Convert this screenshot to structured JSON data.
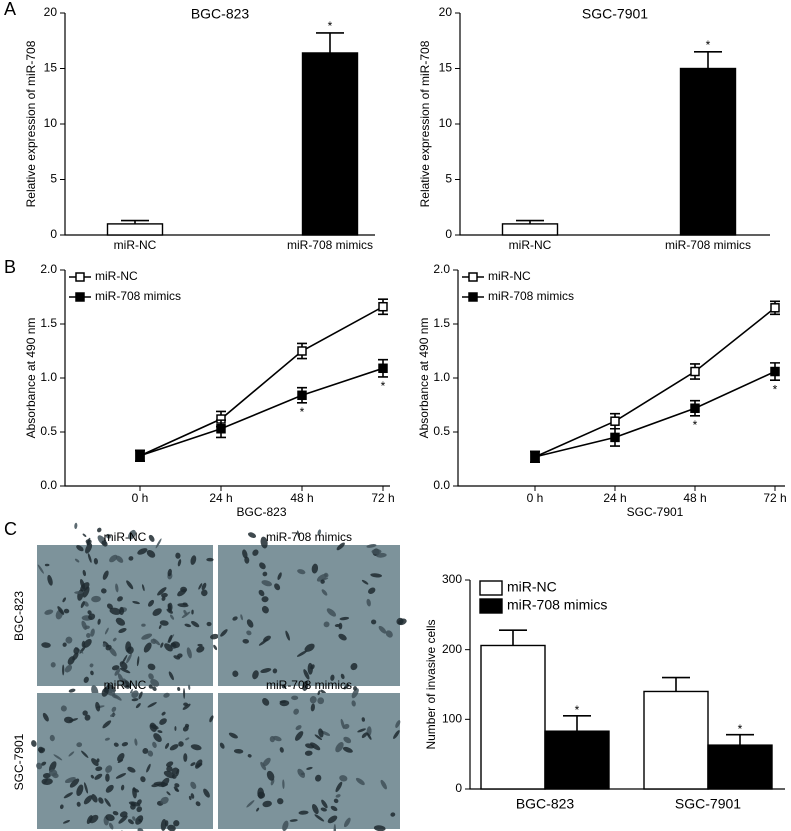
{
  "figure": {
    "panel_labels": [
      "A",
      "B",
      "C"
    ],
    "micrographs": {
      "columns": [
        "miR-NC",
        "miR-708 mimics"
      ],
      "rows": [
        "BGC-823",
        "SGC-7901"
      ]
    }
  },
  "chart_data": [
    {
      "type": "bar",
      "title": "BGC-823",
      "y_label": "Relative expression of miR-708",
      "categories": [
        "miR-NC",
        "miR-708 mimics"
      ],
      "values": [
        1.0,
        16.4
      ],
      "errors": [
        0.3,
        1.8
      ],
      "colors": [
        "#ffffff",
        "#000000"
      ],
      "significance_marks": [
        null,
        "*"
      ],
      "ylim": [
        0,
        20
      ],
      "yticks": [
        0,
        5,
        10,
        15,
        20
      ]
    },
    {
      "type": "bar",
      "title": "SGC-7901",
      "y_label": "Relative expression of miR-708",
      "categories": [
        "miR-NC",
        "miR-708 mimics"
      ],
      "values": [
        1.0,
        15.0
      ],
      "errors": [
        0.3,
        1.5
      ],
      "colors": [
        "#ffffff",
        "#000000"
      ],
      "significance_marks": [
        null,
        "*"
      ],
      "ylim": [
        0,
        20
      ],
      "yticks": [
        0,
        5,
        10,
        15,
        20
      ]
    },
    {
      "type": "line",
      "x_label": "BGC-823",
      "y_label": "Absorbance at 490 nm",
      "categories": [
        "0 h",
        "24 h",
        "48 h",
        "72 h"
      ],
      "legend": "top-left",
      "series": [
        {
          "name": "miR-NC",
          "color": "#000000",
          "marker_fill": "#ffffff",
          "values": [
            0.28,
            0.62,
            1.25,
            1.66
          ],
          "errors": [
            0.05,
            0.07,
            0.07,
            0.07
          ],
          "significance_marks": [
            null,
            null,
            null,
            null
          ]
        },
        {
          "name": "miR-708 mimics",
          "color": "#000000",
          "marker_fill": "#000000",
          "values": [
            0.28,
            0.53,
            0.84,
            1.09
          ],
          "errors": [
            0.05,
            0.08,
            0.07,
            0.08
          ],
          "significance_marks": [
            null,
            null,
            "*",
            "*"
          ]
        }
      ],
      "ylim": [
        0,
        2
      ],
      "yticks": [
        {
          "value": 0,
          "label": "0.0"
        },
        {
          "value": 0.5,
          "label": "0.5"
        },
        {
          "value": 1,
          "label": "1.0"
        },
        {
          "value": 1.5,
          "label": "1.5"
        },
        {
          "value": 2,
          "label": "2.0"
        }
      ]
    },
    {
      "type": "line",
      "x_label": "SGC-7901",
      "y_label": "Absorbance at 490 nm",
      "categories": [
        "0 h",
        "24 h",
        "48 h",
        "72 h"
      ],
      "legend": "top-left",
      "series": [
        {
          "name": "miR-NC",
          "color": "#000000",
          "marker_fill": "#ffffff",
          "values": [
            0.27,
            0.6,
            1.06,
            1.65
          ],
          "errors": [
            0.05,
            0.07,
            0.07,
            0.06
          ],
          "significance_marks": [
            null,
            null,
            null,
            null
          ]
        },
        {
          "name": "miR-708 mimics",
          "color": "#000000",
          "marker_fill": "#000000",
          "values": [
            0.27,
            0.45,
            0.72,
            1.06
          ],
          "errors": [
            0.05,
            0.08,
            0.07,
            0.08
          ],
          "significance_marks": [
            null,
            null,
            "*",
            "*"
          ]
        }
      ],
      "ylim": [
        0,
        2
      ],
      "yticks": [
        {
          "value": 0,
          "label": "0.0"
        },
        {
          "value": 0.5,
          "label": "0.5"
        },
        {
          "value": 1,
          "label": "1.0"
        },
        {
          "value": 1.5,
          "label": "1.5"
        },
        {
          "value": 2,
          "label": "2.0"
        }
      ]
    },
    {
      "type": "bar",
      "y_label": "Number of invasive cells",
      "legend": "top-left",
      "categories": [
        "BGC-823",
        "SGC-7901"
      ],
      "series": [
        {
          "name": "miR-NC",
          "color": "#ffffff",
          "values": [
            206,
            140
          ],
          "errors": [
            22,
            20
          ],
          "significance_marks": [
            null,
            null
          ]
        },
        {
          "name": "miR-708 mimics",
          "color": "#000000",
          "values": [
            83,
            63
          ],
          "errors": [
            22,
            15
          ],
          "significance_marks": [
            "*",
            "*"
          ]
        }
      ],
      "ylim": [
        0,
        300
      ],
      "yticks": [
        0,
        100,
        200,
        300
      ]
    }
  ]
}
